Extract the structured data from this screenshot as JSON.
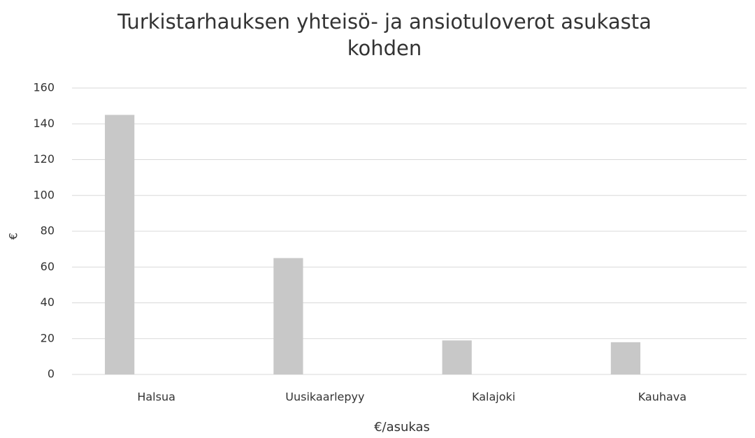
{
  "chart_data": {
    "type": "bar",
    "title": "Turkistarhauksen yhteisö- ja ansiotuloverot asukasta kohden",
    "x_label": "€/asukas",
    "y_label": "€",
    "categories": [
      "Halsua",
      "Uusikaarlepyy",
      "Kalajoki",
      "Kauhava"
    ],
    "values": [
      145,
      65,
      19,
      18
    ],
    "color": "#c8c8c8",
    "ylim": [
      0,
      160
    ],
    "yticks": [
      0,
      20,
      40,
      60,
      80,
      100,
      120,
      140,
      160
    ],
    "grid": true
  }
}
